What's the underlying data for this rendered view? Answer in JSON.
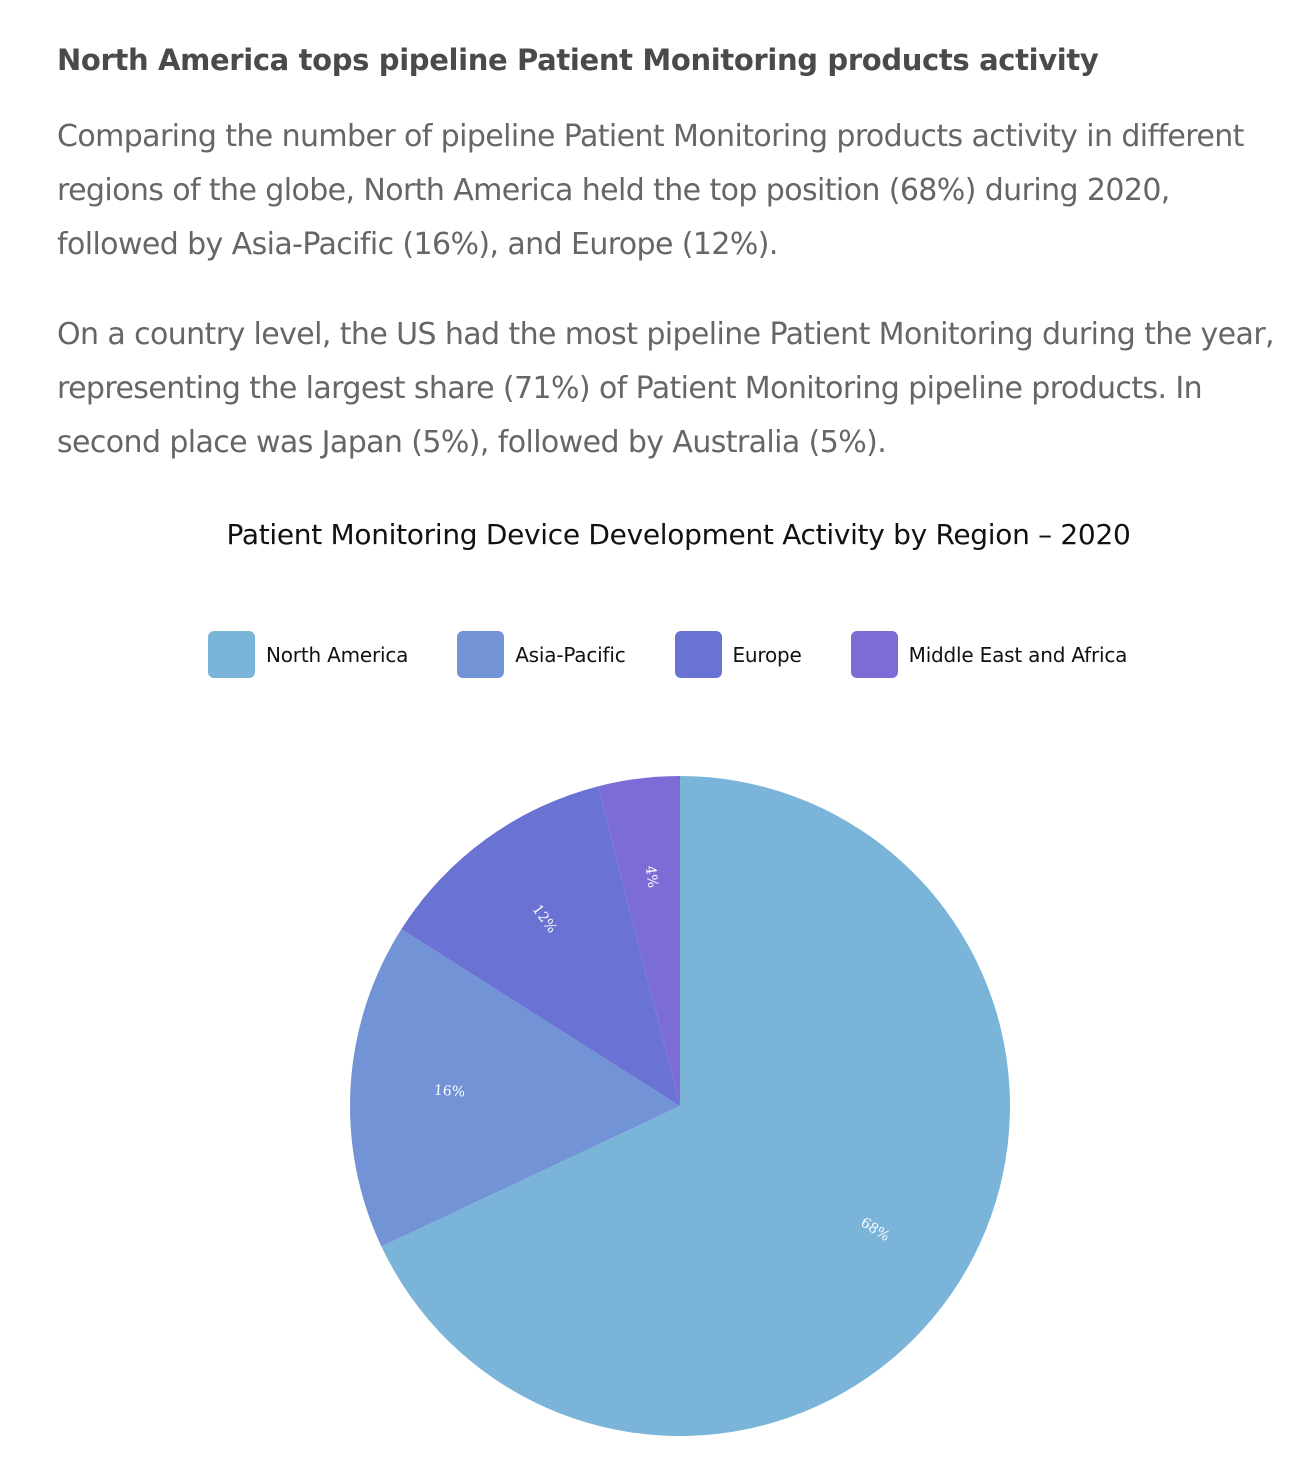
{
  "article": {
    "headline": "North America tops pipeline Patient Monitoring products activity",
    "paragraph_1": "Comparing the number of pipeline Patient Monitoring products activity in different regions of the globe, North America held the top position (68%) during 2020, followed by Asia-Pacific (16%), and Europe (12%).",
    "paragraph_2": "On a country level, the US had the most pipeline Patient Monitoring during the year, representing the largest share (71%) of Patient Monitoring pipeline products. In second place was Japan (5%), followed by Australia (5%)."
  },
  "chart_data": {
    "type": "pie",
    "title": "Patient Monitoring Device Development Activity by Region – 2020",
    "legend_position": "top",
    "categories": [
      "North America",
      "Asia-Pacific",
      "Europe",
      "Middle East and Africa"
    ],
    "values": [
      68,
      16,
      12,
      4
    ],
    "labels": [
      "68%",
      "16%",
      "12%",
      "4%"
    ],
    "colors": [
      "#7ab4d8",
      "#7293d6",
      "#6a72d4",
      "#7c6dd6"
    ]
  }
}
